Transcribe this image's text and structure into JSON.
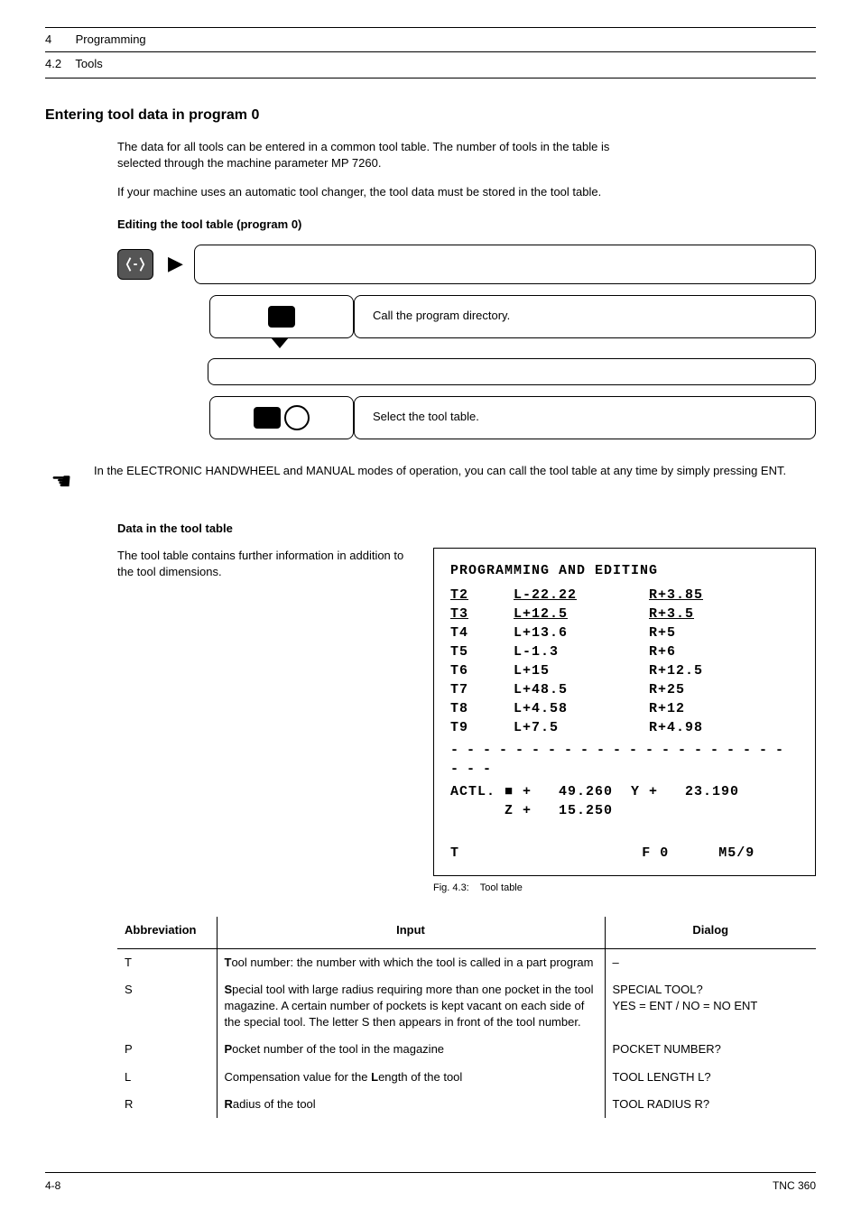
{
  "header": {
    "chapter_num": "4",
    "chapter_title": "Programming",
    "section_num": "4.2",
    "section_title": "Tools"
  },
  "title": "Entering tool data in program 0",
  "intro_para1": "The data for all tools can be entered in a common tool table. The number of tools in the table is selected through the machine parameter MP 7260.",
  "intro_para2": "If your machine uses an automatic tool changer, the tool data must be stored in the tool table.",
  "edit_heading": "Editing the tool table (program 0)",
  "flow": {
    "step1_text": "Call the program directory.",
    "step2_text": "Select the tool table."
  },
  "note_text": "In the ELECTRONIC HANDWHEEL and MANUAL modes of operation, you can call the tool table at any time by simply pressing ENT.",
  "data_heading": "Data in the tool table",
  "data_intro": "The tool table contains further information in addition to the tool dimensions.",
  "screen": {
    "title": "PROGRAMMING AND EDITING",
    "rows": [
      {
        "t": "T2",
        "l": "L-22.22",
        "r": "R+3.85",
        "ul": true
      },
      {
        "t": "T3",
        "l": "L+12.5",
        "r": "R+3.5",
        "ul": true
      },
      {
        "t": "T4",
        "l": "L+13.6",
        "r": "R+5",
        "ul": false
      },
      {
        "t": "T5",
        "l": "L-1.3",
        "r": "R+6",
        "ul": false
      },
      {
        "t": "T6",
        "l": "L+15",
        "r": "R+12.5",
        "ul": false
      },
      {
        "t": "T7",
        "l": "L+48.5",
        "r": "R+25",
        "ul": false
      },
      {
        "t": "T8",
        "l": "L+4.58",
        "r": "R+12",
        "ul": false
      },
      {
        "t": "T9",
        "l": "L+7.5",
        "r": "R+4.98",
        "ul": false
      }
    ],
    "actl_line1": "ACTL. ■ +   49.260  Y +   23.190",
    "actl_line2": "      Z +   15.250",
    "status_t": "T",
    "status_f": "F 0",
    "status_m": "M5/9",
    "caption_label": "Fig. 4.3:",
    "caption_text": "Tool table"
  },
  "defs": {
    "head_abbr": "Abbreviation",
    "head_input": "Input",
    "head_dialog": "Dialog",
    "rows": [
      {
        "abbr": "T",
        "input_bold": "T",
        "input_rest": "ool number: the number with which the tool is called in a part program",
        "dialog": "–"
      },
      {
        "abbr": "S",
        "input_bold": "S",
        "input_rest": "pecial tool with large radius requiring more than one pocket in the tool magazine. A certain number of pockets is kept vacant on each side of the special tool. The letter S then appears in front of the tool number.",
        "dialog": "SPECIAL TOOL?\nYES = ENT / NO = NO ENT"
      },
      {
        "abbr": "P",
        "input_bold": "P",
        "input_rest": "ocket number of the tool in the magazine",
        "dialog": "POCKET NUMBER?"
      },
      {
        "abbr": "L",
        "input_pre": "Compensation value for the ",
        "input_bold": "L",
        "input_rest": "ength of the tool",
        "dialog": "TOOL LENGTH L?"
      },
      {
        "abbr": "R",
        "input_bold": "R",
        "input_rest": "adius of the tool",
        "dialog": "TOOL RADIUS R?"
      }
    ]
  },
  "footer": {
    "left": "4-8",
    "right": "TNC 360"
  }
}
